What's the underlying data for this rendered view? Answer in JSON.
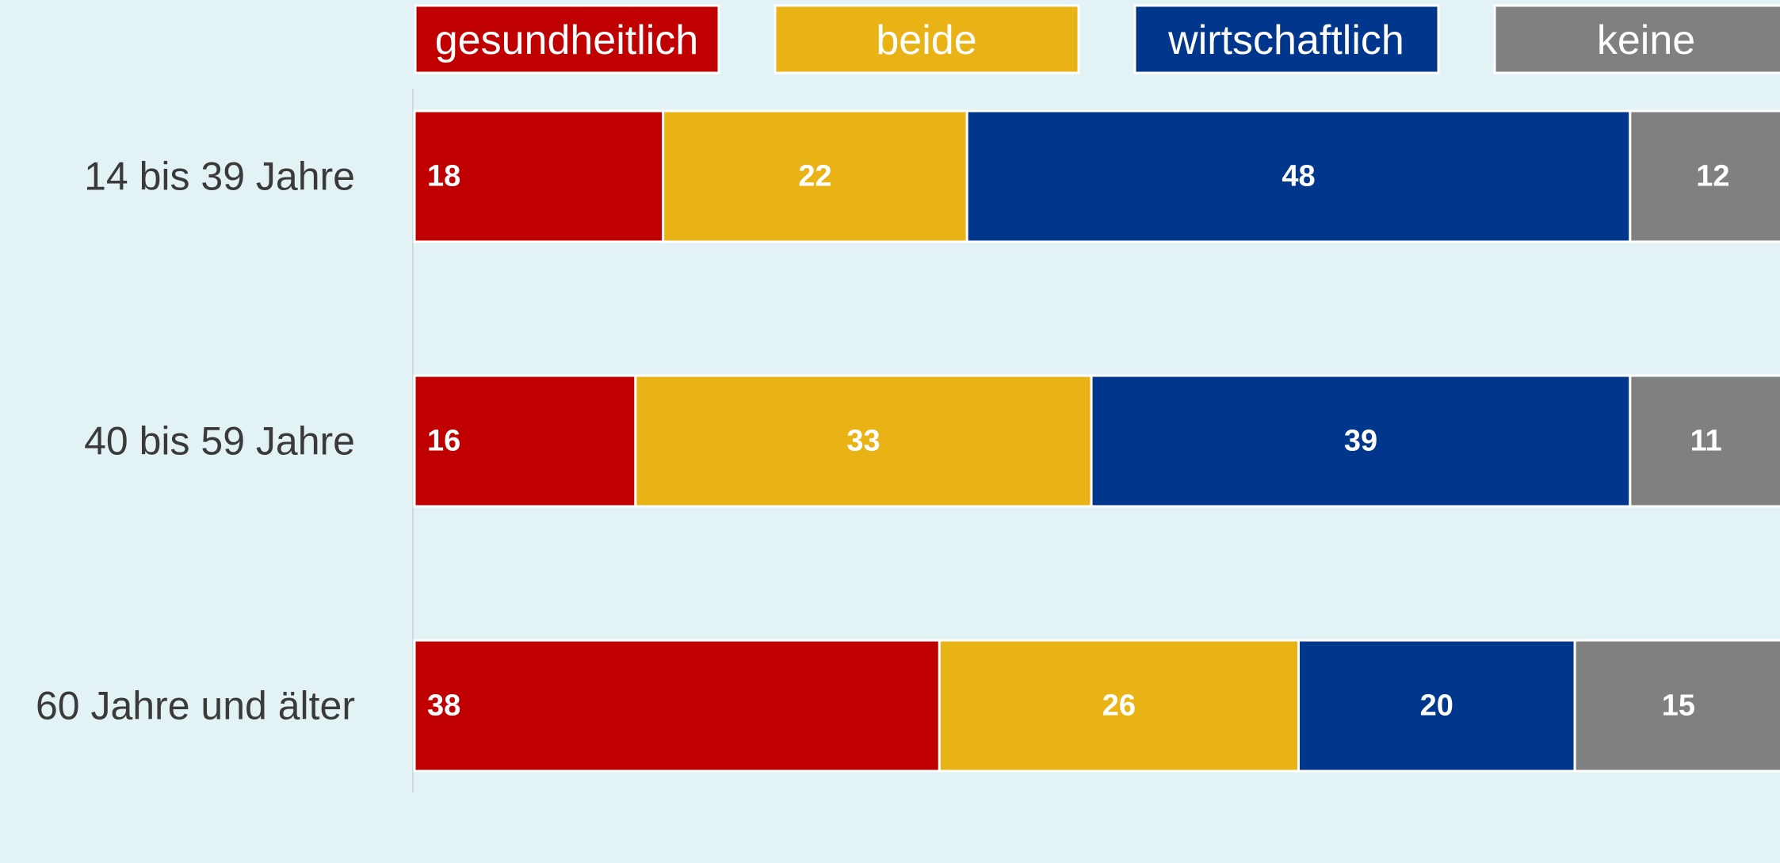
{
  "chart_data": {
    "type": "stacked-barh",
    "categories": [
      "14 bis 39 Jahre",
      "40 bis 59 Jahre",
      "60 Jahre und älter"
    ],
    "series": [
      {
        "name": "gesundheitlich",
        "color": "#c00000",
        "values": [
          18,
          16,
          38
        ]
      },
      {
        "name": "beide",
        "color": "#eab315",
        "values": [
          22,
          33,
          26
        ]
      },
      {
        "name": "wirtschaftlich",
        "color": "#00368c",
        "values": [
          48,
          39,
          20
        ]
      },
      {
        "name": "keine",
        "color": "#808080",
        "values": [
          12,
          11,
          15
        ]
      }
    ],
    "xlim": [
      0,
      100
    ],
    "legend": "top"
  }
}
